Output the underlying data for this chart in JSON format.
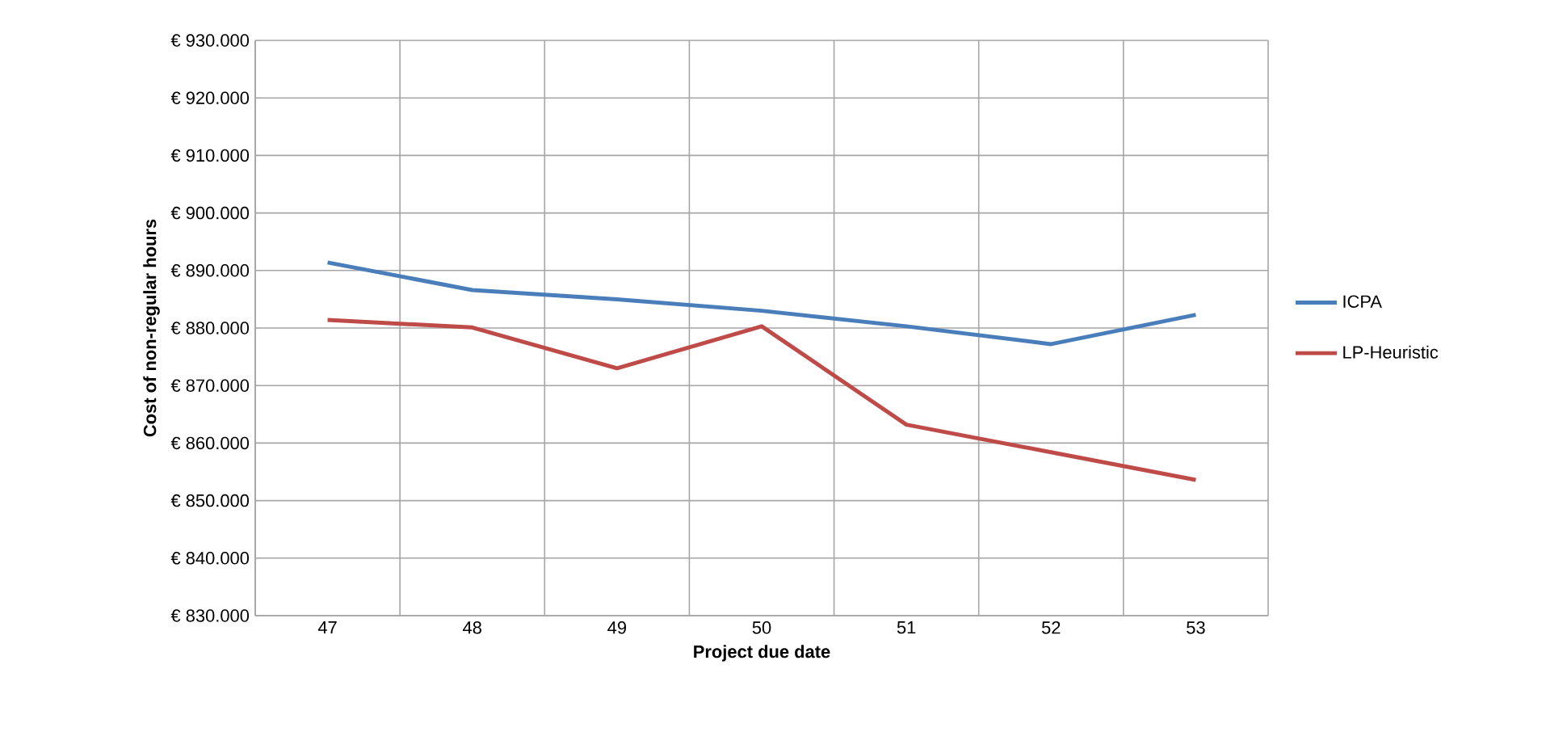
{
  "chart_data": {
    "type": "line",
    "xlabel": "Project due date",
    "ylabel": "Cost of non-regular hours",
    "categories": [
      "47",
      "48",
      "49",
      "50",
      "51",
      "52",
      "53"
    ],
    "series": [
      {
        "name": "ICPA",
        "color": "#4a7ebb",
        "values": [
          891400,
          886600,
          885000,
          883000,
          880300,
          877200,
          882300
        ]
      },
      {
        "name": "LP-Heuristic",
        "color": "#be4b48",
        "values": [
          881400,
          880100,
          873000,
          880300,
          863200,
          858400,
          853600
        ]
      }
    ],
    "ylim": [
      830000,
      930000
    ],
    "yticks": [
      {
        "value": 830000,
        "label": "€ 830.000"
      },
      {
        "value": 840000,
        "label": "€ 840.000"
      },
      {
        "value": 850000,
        "label": "€ 850.000"
      },
      {
        "value": 860000,
        "label": "€ 860.000"
      },
      {
        "value": 870000,
        "label": "€ 870.000"
      },
      {
        "value": 880000,
        "label": "€ 880.000"
      },
      {
        "value": 890000,
        "label": "€ 890.000"
      },
      {
        "value": 900000,
        "label": "€ 900.000"
      },
      {
        "value": 910000,
        "label": "€ 910.000"
      },
      {
        "value": 920000,
        "label": "€ 920.000"
      },
      {
        "value": 930000,
        "label": "€ 930.000"
      }
    ],
    "grid": true,
    "legend": "right",
    "marker": "none",
    "line_style": "solid"
  }
}
